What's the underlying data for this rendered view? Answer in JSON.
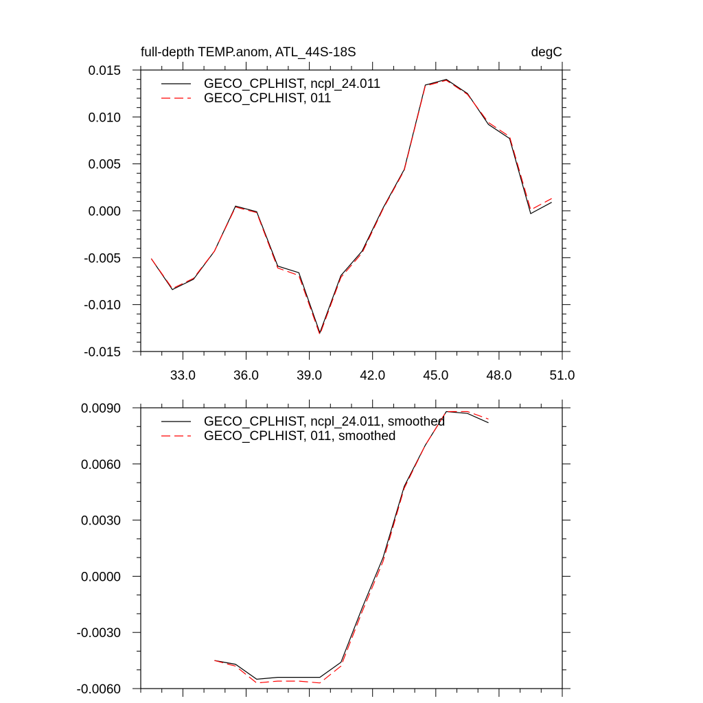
{
  "chart_data": [
    {
      "type": "line",
      "title_left": "full-depth TEMP.anom, ATL_44S-18S",
      "title_right": "degC",
      "xlabel": "",
      "ylabel": "",
      "xlim": [
        31.0,
        51.0
      ],
      "ylim": [
        -0.015,
        0.015
      ],
      "x_ticks": [
        33.0,
        36.0,
        39.0,
        42.0,
        45.0,
        48.0,
        51.0
      ],
      "x_tick_labels": [
        "33.0",
        "36.0",
        "39.0",
        "42.0",
        "45.0",
        "48.0",
        "51.0"
      ],
      "y_ticks": [
        -0.015,
        -0.01,
        -0.005,
        0.0,
        0.005,
        0.01,
        0.015
      ],
      "y_tick_labels": [
        "-0.015",
        "-0.010",
        "-0.005",
        "0.000",
        "0.005",
        "0.010",
        "0.015"
      ],
      "legend_position": "top-left",
      "x": [
        31.5,
        32.5,
        33.5,
        34.5,
        35.5,
        36.5,
        37.5,
        38.5,
        39.5,
        40.5,
        41.5,
        42.5,
        43.5,
        44.5,
        45.5,
        46.5,
        47.5,
        48.5,
        49.5,
        50.5
      ],
      "series": [
        {
          "name": "GECO_CPLHIST, ncpl_24.011",
          "color": "#000000",
          "dash": "solid",
          "values": [
            -0.0051,
            -0.0084,
            -0.0073,
            -0.0043,
            0.0005,
            -0.0001,
            -0.0059,
            -0.0066,
            -0.013,
            -0.0069,
            -0.0043,
            0.0003,
            0.0044,
            0.0134,
            0.014,
            0.0125,
            0.0092,
            0.0077,
            -0.0003,
            0.0009
          ]
        },
        {
          "name": "GECO_CPLHIST, 011",
          "color": "#ff0000",
          "dash": "dashed",
          "values": [
            -0.0051,
            -0.0083,
            -0.0072,
            -0.0043,
            0.0004,
            -0.0002,
            -0.0061,
            -0.0069,
            -0.0132,
            -0.0071,
            -0.0045,
            0.0002,
            0.0043,
            0.0133,
            0.0139,
            0.0124,
            0.0094,
            0.0079,
            0.0001,
            0.0013
          ]
        }
      ]
    },
    {
      "type": "line",
      "xlabel": "",
      "ylabel": "",
      "xlim": [
        31.0,
        51.0
      ],
      "ylim": [
        -0.006,
        0.009
      ],
      "x_ticks": [
        33.0,
        36.0,
        39.0,
        42.0,
        45.0,
        48.0,
        51.0
      ],
      "y_ticks": [
        -0.006,
        -0.003,
        0.0,
        0.003,
        0.006,
        0.009
      ],
      "y_tick_labels": [
        "-0.0060",
        "-0.0030",
        "0.0000",
        "0.0030",
        "0.0060",
        "0.0090"
      ],
      "legend_position": "top-left",
      "x": [
        34.5,
        35.5,
        36.5,
        37.5,
        38.5,
        39.5,
        40.5,
        41.5,
        42.5,
        43.5,
        44.5,
        45.5,
        46.5,
        47.5
      ],
      "series": [
        {
          "name": "GECO_CPLHIST, ncpl_24.011, smoothed",
          "color": "#000000",
          "dash": "solid",
          "values": [
            -0.0045,
            -0.0047,
            -0.0055,
            -0.0054,
            -0.0054,
            -0.0054,
            -0.0046,
            -0.0017,
            0.001,
            0.0048,
            0.007,
            0.0088,
            0.0087,
            0.0082
          ]
        },
        {
          "name": "GECO_CPLHIST, 011, smoothed",
          "color": "#ff0000",
          "dash": "dashed",
          "values": [
            -0.0045,
            -0.0048,
            -0.0057,
            -0.0056,
            -0.0056,
            -0.0057,
            -0.0048,
            -0.0019,
            0.0008,
            0.0047,
            0.007,
            0.0088,
            0.0088,
            0.0084
          ]
        }
      ]
    }
  ]
}
